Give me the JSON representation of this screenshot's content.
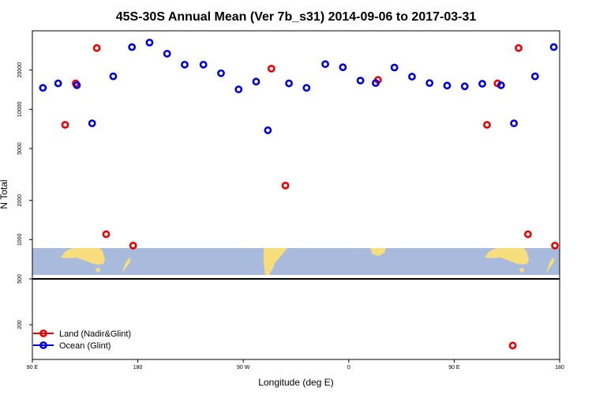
{
  "chart_data": {
    "type": "scatter",
    "title": "45S-30S Annual Mean (Ver 7b_s31)   2014-09-06 to 2017-03-31",
    "xlabel": "Longitude (deg E)",
    "ylabel": "N Total",
    "y_scale": "log",
    "grid": false,
    "legend_position": "bottom-left",
    "x_ticks": [
      {
        "value": 90,
        "label": "90 E"
      },
      {
        "value": 180,
        "label": "180"
      },
      {
        "value": 270,
        "label": "90 W"
      },
      {
        "value": 360,
        "label": "0"
      },
      {
        "value": 450,
        "label": "90 E"
      },
      {
        "value": 540,
        "label": "180"
      }
    ],
    "upper_panel": {
      "ylim": [
        500,
        40000
      ],
      "y_ticks": [
        {
          "value": 500,
          "label": "500"
        },
        {
          "value": 1000,
          "label": "1000"
        },
        {
          "value": 2000,
          "label": "2000"
        },
        {
          "value": 5000,
          "label": "5000"
        },
        {
          "value": 10000,
          "label": "10000"
        },
        {
          "value": 20000,
          "label": "20000"
        }
      ]
    },
    "lower_panel": {
      "ylim": [
        100,
        500
      ],
      "y_ticks": [
        {
          "value": 200,
          "label": "200"
        },
        {
          "value": 500,
          "label": "500"
        }
      ]
    },
    "series": [
      {
        "name": "Land (Nadir&Glint)",
        "color": "#ee0000",
        "points": [
          {
            "x": 118,
            "y": 7600
          },
          {
            "x": 127,
            "y": 15800
          },
          {
            "x": 145,
            "y": 29500
          },
          {
            "x": 153,
            "y": 1100
          },
          {
            "x": 176,
            "y": 900
          },
          {
            "x": 294,
            "y": 20500
          },
          {
            "x": 306,
            "y": 2600
          },
          {
            "x": 385,
            "y": 16800
          },
          {
            "x": 500,
            "y": 132
          },
          {
            "x": 478,
            "y": 7600
          },
          {
            "x": 487,
            "y": 15800
          },
          {
            "x": 505,
            "y": 29500
          },
          {
            "x": 513,
            "y": 1100
          },
          {
            "x": 536,
            "y": 900
          }
        ]
      },
      {
        "name": "Ocean (Glint)",
        "color": "#0000dd",
        "points": [
          {
            "x": 99,
            "y": 14600
          },
          {
            "x": 112,
            "y": 15800
          },
          {
            "x": 128,
            "y": 15300
          },
          {
            "x": 141,
            "y": 7800
          },
          {
            "x": 159,
            "y": 17900
          },
          {
            "x": 175,
            "y": 30000
          },
          {
            "x": 190,
            "y": 32500
          },
          {
            "x": 205,
            "y": 26700
          },
          {
            "x": 220,
            "y": 22000
          },
          {
            "x": 236,
            "y": 22000
          },
          {
            "x": 251,
            "y": 18900
          },
          {
            "x": 266,
            "y": 14200
          },
          {
            "x": 281,
            "y": 16300
          },
          {
            "x": 291,
            "y": 6900
          },
          {
            "x": 309,
            "y": 15800
          },
          {
            "x": 324,
            "y": 14600
          },
          {
            "x": 340,
            "y": 22200
          },
          {
            "x": 355,
            "y": 21000
          },
          {
            "x": 370,
            "y": 16600
          },
          {
            "x": 383,
            "y": 15900
          },
          {
            "x": 399,
            "y": 20900
          },
          {
            "x": 414,
            "y": 17800
          },
          {
            "x": 429,
            "y": 15900
          },
          {
            "x": 444,
            "y": 15200
          },
          {
            "x": 459,
            "y": 15000
          },
          {
            "x": 474,
            "y": 15700
          },
          {
            "x": 490,
            "y": 15300
          },
          {
            "x": 501,
            "y": 7800
          },
          {
            "x": 519,
            "y": 17900
          },
          {
            "x": 535,
            "y": 30000
          }
        ]
      }
    ]
  }
}
